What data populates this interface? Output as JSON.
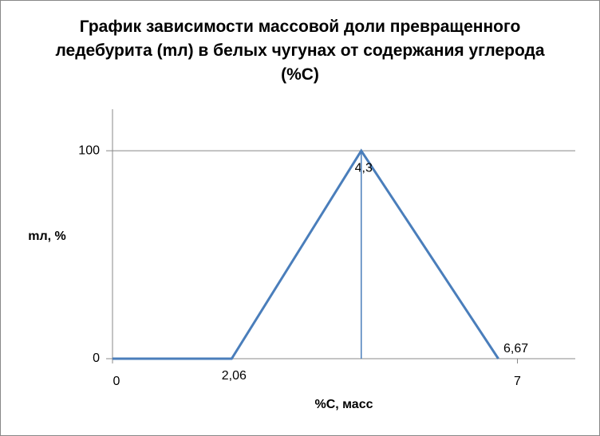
{
  "chart_data": {
    "type": "line",
    "title": "График зависимости массовой доли превращенного ледебурита (mл) в белых чугунах от содержания углерода (%С)",
    "x_label": "%С, масс",
    "y_label": "mл, %",
    "series": [
      {
        "color": "#4a7ebb",
        "width": 3,
        "x": [
          0,
          2.06,
          4.3,
          6.67
        ],
        "values": [
          0,
          0,
          100,
          0
        ],
        "x_labels": [
          null,
          "2,06",
          "4,3",
          "6,67"
        ]
      },
      {
        "color": "#4a7ebb",
        "width": 1.5,
        "x": [
          4.3,
          4.3
        ],
        "values": [
          0,
          100
        ]
      }
    ],
    "xlim": [
      0,
      8
    ],
    "xticks": [
      0,
      7
    ],
    "ylim": [
      0,
      120
    ],
    "yticks": [
      0,
      100
    ],
    "grid": true
  }
}
